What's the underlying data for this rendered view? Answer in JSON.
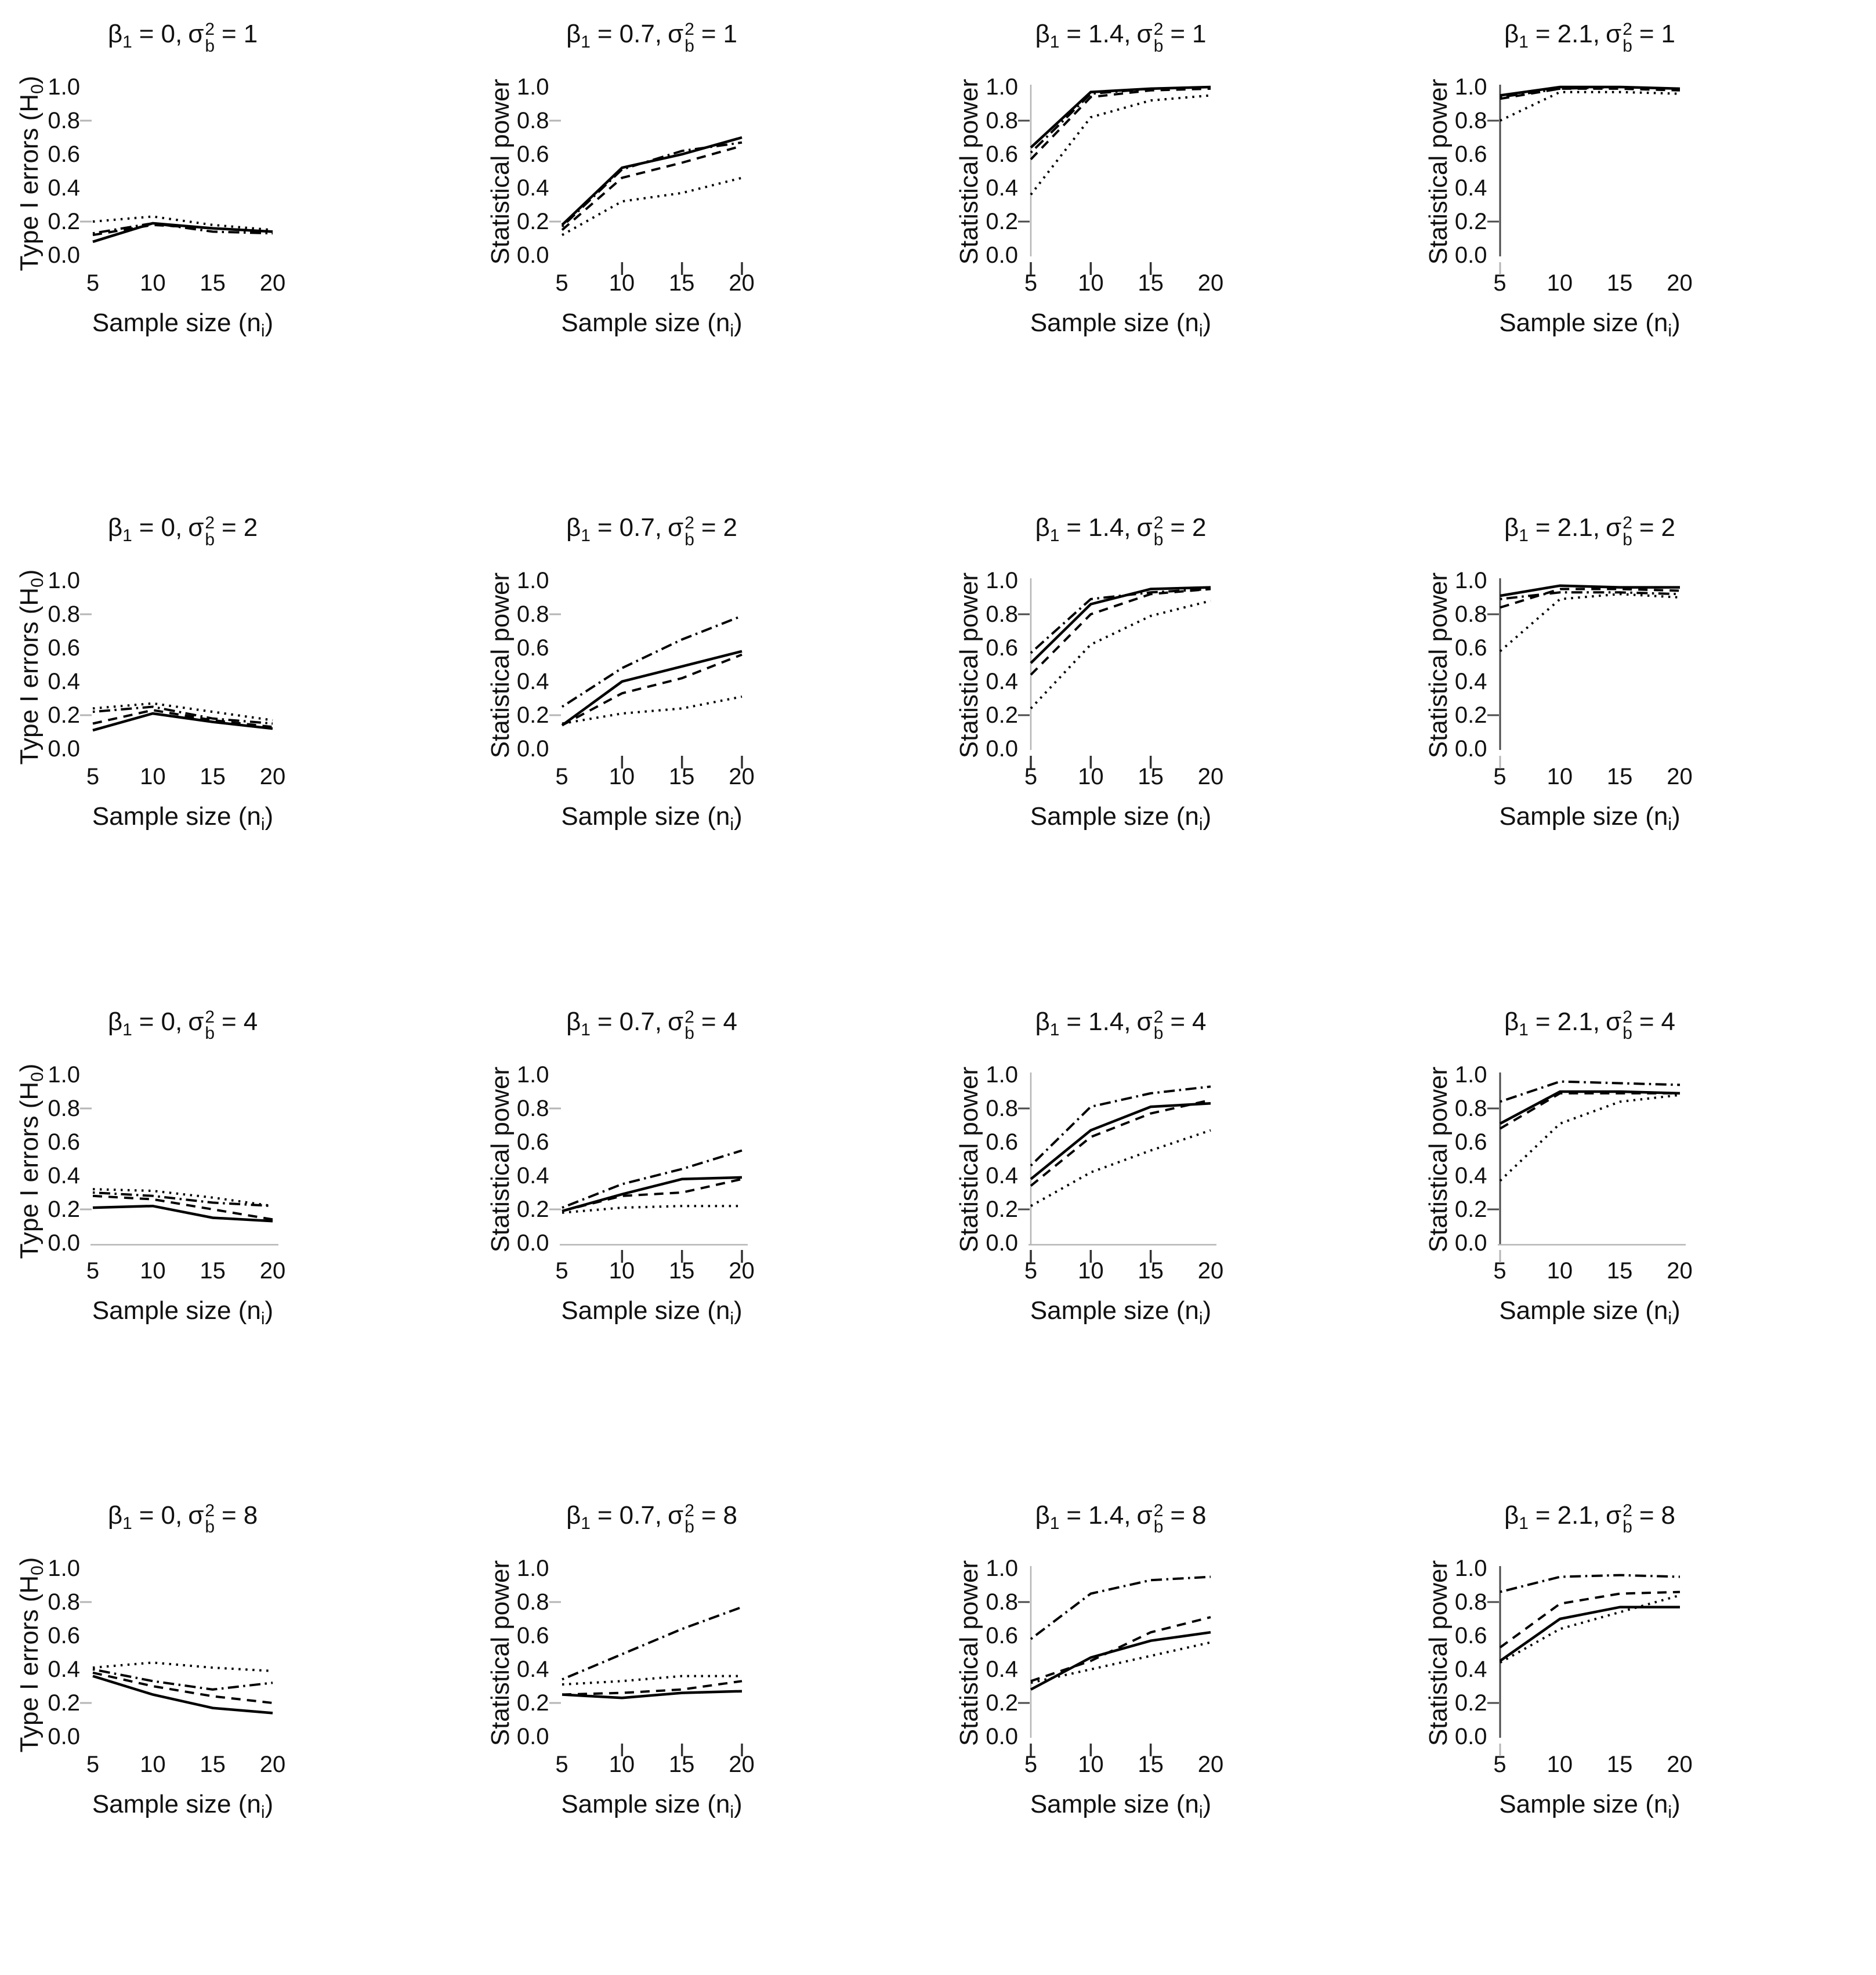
{
  "figure": {
    "background": "#ffffff",
    "text_color": "#111111",
    "line_color": "#000000",
    "axis_light_color": "#b5b5b5",
    "axis_dark_color": "#4a4a4a",
    "rows": 4,
    "columns": 4
  },
  "labels": {
    "beta_symbol": "β",
    "beta_sub": "1",
    "sigma_symbol": "σ",
    "sigma_sup": "2",
    "sigma_sub": "b",
    "eq": "=",
    "sep": ",",
    "y_type1": {
      "pre": "Type I errors (H",
      "sub": "0",
      "post": ")"
    },
    "y_power": "Statistical power",
    "x": {
      "pre": "Sample size (n",
      "sub": "i",
      "post": ")"
    }
  },
  "axis": {
    "x_ticks": [
      "5",
      "10",
      "15",
      "20"
    ],
    "y_ticks": [
      "0.0",
      "0.2",
      "0.4",
      "0.6",
      "0.8",
      "1.0"
    ],
    "xlim": [
      5,
      20
    ],
    "ylim": [
      0,
      1
    ],
    "grid": "off",
    "legend": "none"
  },
  "series_styles": [
    {
      "name": "solid"
    },
    {
      "name": "dashed"
    },
    {
      "name": "dotted"
    },
    {
      "name": "dash-dot"
    }
  ],
  "chart_data": [
    {
      "type": "line",
      "title_plain": "β1 = 0, σb² = 1",
      "beta1": "0",
      "sigma_b2": "1",
      "ylabel_kind": "type1",
      "x": [
        5,
        10,
        15,
        20
      ],
      "ylim": [
        0,
        1
      ],
      "series": [
        {
          "name": "solid",
          "values": [
            0.08,
            0.19,
            0.16,
            0.14
          ]
        },
        {
          "name": "dashed",
          "values": [
            0.12,
            0.18,
            0.16,
            0.14
          ]
        },
        {
          "name": "dotted",
          "values": [
            0.2,
            0.23,
            0.18,
            0.15
          ]
        },
        {
          "name": "dash-dot",
          "values": [
            0.13,
            0.19,
            0.14,
            0.13
          ]
        }
      ],
      "axes": {
        "y_line": "none",
        "x_line": false,
        "x_ticks_dark": [],
        "x_ticks_light": []
      }
    },
    {
      "type": "line",
      "title_plain": "β1 = 0.7, σb² = 1",
      "beta1": "0.7",
      "sigma_b2": "1",
      "ylabel_kind": "power",
      "x": [
        5,
        10,
        15,
        20
      ],
      "ylim": [
        0,
        1
      ],
      "series": [
        {
          "name": "solid",
          "values": [
            0.18,
            0.52,
            0.6,
            0.7
          ]
        },
        {
          "name": "dashed",
          "values": [
            0.15,
            0.46,
            0.55,
            0.65
          ]
        },
        {
          "name": "dotted",
          "values": [
            0.12,
            0.32,
            0.37,
            0.46
          ]
        },
        {
          "name": "dash-dot",
          "values": [
            0.17,
            0.51,
            0.62,
            0.67
          ]
        }
      ],
      "axes": {
        "y_line": "none",
        "x_line": false,
        "x_ticks_dark": [
          10,
          15,
          20
        ],
        "x_ticks_light": []
      }
    },
    {
      "type": "line",
      "title_plain": "β1 = 1.4, σb² = 1",
      "beta1": "1.4",
      "sigma_b2": "1",
      "ylabel_kind": "power",
      "x": [
        5,
        10,
        15,
        20
      ],
      "ylim": [
        0,
        1
      ],
      "series": [
        {
          "name": "solid",
          "values": [
            0.64,
            0.97,
            0.99,
            1.0
          ]
        },
        {
          "name": "dashed",
          "values": [
            0.57,
            0.94,
            0.98,
            0.99
          ]
        },
        {
          "name": "dotted",
          "values": [
            0.36,
            0.82,
            0.92,
            0.95
          ]
        },
        {
          "name": "dash-dot",
          "values": [
            0.61,
            0.96,
            0.99,
            1.0
          ]
        }
      ],
      "axes": {
        "y_line": "light",
        "x_line": false,
        "x_ticks_dark": [
          5,
          10,
          15
        ],
        "x_ticks_light": []
      }
    },
    {
      "type": "line",
      "title_plain": "β1 = 2.1, σb² = 1",
      "beta1": "2.1",
      "sigma_b2": "1",
      "ylabel_kind": "power",
      "x": [
        5,
        10,
        15,
        20
      ],
      "ylim": [
        0,
        1
      ],
      "series": [
        {
          "name": "solid",
          "values": [
            0.95,
            1.0,
            1.0,
            0.99
          ]
        },
        {
          "name": "dashed",
          "values": [
            0.93,
            0.99,
            0.99,
            0.98
          ]
        },
        {
          "name": "dotted",
          "values": [
            0.8,
            0.97,
            0.97,
            0.96
          ]
        },
        {
          "name": "dash-dot",
          "values": [
            0.94,
            0.99,
            1.0,
            0.99
          ]
        }
      ],
      "axes": {
        "y_line": "dark",
        "x_line": false,
        "x_ticks_dark": [],
        "x_ticks_light": [
          5
        ]
      }
    },
    {
      "type": "line",
      "title_plain": "β1 = 0, σb² = 2",
      "beta1": "0",
      "sigma_b2": "2",
      "ylabel_kind": "type1",
      "x": [
        5,
        10,
        15,
        20
      ],
      "ylim": [
        0,
        1
      ],
      "series": [
        {
          "name": "solid",
          "values": [
            0.11,
            0.21,
            0.16,
            0.12
          ]
        },
        {
          "name": "dashed",
          "values": [
            0.15,
            0.23,
            0.17,
            0.13
          ]
        },
        {
          "name": "dotted",
          "values": [
            0.24,
            0.27,
            0.22,
            0.17
          ]
        },
        {
          "name": "dash-dot",
          "values": [
            0.22,
            0.25,
            0.18,
            0.15
          ]
        }
      ],
      "axes": {
        "y_line": "none",
        "x_line": false,
        "x_ticks_dark": [],
        "x_ticks_light": []
      }
    },
    {
      "type": "line",
      "title_plain": "β1 = 0.7, σb² = 2",
      "beta1": "0.7",
      "sigma_b2": "2",
      "ylabel_kind": "power",
      "x": [
        5,
        10,
        15,
        20
      ],
      "ylim": [
        0,
        1
      ],
      "series": [
        {
          "name": "solid",
          "values": [
            0.14,
            0.4,
            0.49,
            0.58
          ]
        },
        {
          "name": "dashed",
          "values": [
            0.14,
            0.33,
            0.42,
            0.56
          ]
        },
        {
          "name": "dotted",
          "values": [
            0.15,
            0.21,
            0.24,
            0.31
          ]
        },
        {
          "name": "dash-dot",
          "values": [
            0.25,
            0.48,
            0.65,
            0.79
          ]
        }
      ],
      "axes": {
        "y_line": "none",
        "x_line": false,
        "x_ticks_dark": [
          10,
          15,
          20
        ],
        "x_ticks_light": []
      }
    },
    {
      "type": "line",
      "title_plain": "β1 = 1.4, σb² = 2",
      "beta1": "1.4",
      "sigma_b2": "2",
      "ylabel_kind": "power",
      "x": [
        5,
        10,
        15,
        20
      ],
      "ylim": [
        0,
        1
      ],
      "series": [
        {
          "name": "solid",
          "values": [
            0.51,
            0.86,
            0.95,
            0.96
          ]
        },
        {
          "name": "dashed",
          "values": [
            0.44,
            0.8,
            0.92,
            0.95
          ]
        },
        {
          "name": "dotted",
          "values": [
            0.24,
            0.62,
            0.79,
            0.88
          ]
        },
        {
          "name": "dash-dot",
          "values": [
            0.57,
            0.89,
            0.93,
            0.95
          ]
        }
      ],
      "axes": {
        "y_line": "light",
        "x_line": false,
        "x_ticks_dark": [
          5,
          10,
          15
        ],
        "x_ticks_light": []
      }
    },
    {
      "type": "line",
      "title_plain": "β1 = 2.1, σb² = 2",
      "beta1": "2.1",
      "sigma_b2": "2",
      "ylabel_kind": "power",
      "x": [
        5,
        10,
        15,
        20
      ],
      "ylim": [
        0,
        1
      ],
      "series": [
        {
          "name": "solid",
          "values": [
            0.91,
            0.97,
            0.96,
            0.96
          ]
        },
        {
          "name": "dashed",
          "values": [
            0.84,
            0.95,
            0.95,
            0.94
          ]
        },
        {
          "name": "dotted",
          "values": [
            0.58,
            0.89,
            0.92,
            0.9
          ]
        },
        {
          "name": "dash-dot",
          "values": [
            0.89,
            0.93,
            0.93,
            0.92
          ]
        }
      ],
      "axes": {
        "y_line": "dark",
        "x_line": false,
        "x_ticks_dark": [],
        "x_ticks_light": [
          5
        ]
      }
    },
    {
      "type": "line",
      "title_plain": "β1 = 0, σb² = 4",
      "beta1": "0",
      "sigma_b2": "4",
      "ylabel_kind": "type1",
      "x": [
        5,
        10,
        15,
        20
      ],
      "ylim": [
        0,
        1
      ],
      "series": [
        {
          "name": "solid",
          "values": [
            0.21,
            0.22,
            0.15,
            0.13
          ]
        },
        {
          "name": "dashed",
          "values": [
            0.28,
            0.26,
            0.2,
            0.14
          ]
        },
        {
          "name": "dotted",
          "values": [
            0.32,
            0.31,
            0.27,
            0.22
          ]
        },
        {
          "name": "dash-dot",
          "values": [
            0.3,
            0.28,
            0.24,
            0.22
          ]
        }
      ],
      "axes": {
        "y_line": "none",
        "x_line": true,
        "x_ticks_dark": [],
        "x_ticks_light": []
      }
    },
    {
      "type": "line",
      "title_plain": "β1 = 0.7, σb² = 4",
      "beta1": "0.7",
      "sigma_b2": "4",
      "ylabel_kind": "power",
      "x": [
        5,
        10,
        15,
        20
      ],
      "ylim": [
        0,
        1
      ],
      "series": [
        {
          "name": "solid",
          "values": [
            0.19,
            0.29,
            0.38,
            0.39
          ]
        },
        {
          "name": "dashed",
          "values": [
            0.19,
            0.28,
            0.3,
            0.38
          ]
        },
        {
          "name": "dotted",
          "values": [
            0.18,
            0.21,
            0.22,
            0.22
          ]
        },
        {
          "name": "dash-dot",
          "values": [
            0.21,
            0.35,
            0.44,
            0.55
          ]
        }
      ],
      "axes": {
        "y_line": "none",
        "x_line": true,
        "x_ticks_dark": [
          10,
          15,
          20
        ],
        "x_ticks_light": []
      }
    },
    {
      "type": "line",
      "title_plain": "β1 = 1.4, σb² = 4",
      "beta1": "1.4",
      "sigma_b2": "4",
      "ylabel_kind": "power",
      "x": [
        5,
        10,
        15,
        20
      ],
      "ylim": [
        0,
        1
      ],
      "series": [
        {
          "name": "solid",
          "values": [
            0.38,
            0.67,
            0.81,
            0.83
          ]
        },
        {
          "name": "dashed",
          "values": [
            0.34,
            0.63,
            0.77,
            0.85
          ]
        },
        {
          "name": "dotted",
          "values": [
            0.22,
            0.42,
            0.55,
            0.67
          ]
        },
        {
          "name": "dash-dot",
          "values": [
            0.46,
            0.81,
            0.89,
            0.93
          ]
        }
      ],
      "axes": {
        "y_line": "light",
        "x_line": true,
        "x_ticks_dark": [
          5,
          10,
          15
        ],
        "x_ticks_light": []
      }
    },
    {
      "type": "line",
      "title_plain": "β1 = 2.1, σb² = 4",
      "beta1": "2.1",
      "sigma_b2": "4",
      "ylabel_kind": "power",
      "x": [
        5,
        10,
        15,
        20
      ],
      "ylim": [
        0,
        1
      ],
      "series": [
        {
          "name": "solid",
          "values": [
            0.71,
            0.9,
            0.9,
            0.89
          ]
        },
        {
          "name": "dashed",
          "values": [
            0.68,
            0.89,
            0.89,
            0.89
          ]
        },
        {
          "name": "dotted",
          "values": [
            0.37,
            0.71,
            0.84,
            0.88
          ]
        },
        {
          "name": "dash-dot",
          "values": [
            0.84,
            0.96,
            0.95,
            0.94
          ]
        }
      ],
      "axes": {
        "y_line": "dark",
        "x_line": true,
        "x_ticks_dark": [],
        "x_ticks_light": [
          5
        ]
      }
    },
    {
      "type": "line",
      "title_plain": "β1 = 0, σb² = 8",
      "beta1": "0",
      "sigma_b2": "8",
      "ylabel_kind": "type1",
      "x": [
        5,
        10,
        15,
        20
      ],
      "ylim": [
        0,
        1
      ],
      "series": [
        {
          "name": "solid",
          "values": [
            0.36,
            0.25,
            0.17,
            0.14
          ]
        },
        {
          "name": "dashed",
          "values": [
            0.38,
            0.3,
            0.24,
            0.2
          ]
        },
        {
          "name": "dotted",
          "values": [
            0.41,
            0.44,
            0.41,
            0.39
          ]
        },
        {
          "name": "dash-dot",
          "values": [
            0.4,
            0.33,
            0.28,
            0.32
          ]
        }
      ],
      "axes": {
        "y_line": "none",
        "x_line": false,
        "x_ticks_dark": [],
        "x_ticks_light": []
      }
    },
    {
      "type": "line",
      "title_plain": "β1 = 0.7, σb² = 8",
      "beta1": "0.7",
      "sigma_b2": "8",
      "ylabel_kind": "power",
      "x": [
        5,
        10,
        15,
        20
      ],
      "ylim": [
        0,
        1
      ],
      "series": [
        {
          "name": "solid",
          "values": [
            0.25,
            0.23,
            0.26,
            0.27
          ]
        },
        {
          "name": "dashed",
          "values": [
            0.25,
            0.26,
            0.28,
            0.33
          ]
        },
        {
          "name": "dotted",
          "values": [
            0.31,
            0.33,
            0.36,
            0.36
          ]
        },
        {
          "name": "dash-dot",
          "values": [
            0.34,
            0.49,
            0.64,
            0.77
          ]
        }
      ],
      "axes": {
        "y_line": "none",
        "x_line": false,
        "x_ticks_dark": [
          10,
          15,
          20
        ],
        "x_ticks_light": []
      }
    },
    {
      "type": "line",
      "title_plain": "β1 = 1.4, σb² = 8",
      "beta1": "1.4",
      "sigma_b2": "8",
      "ylabel_kind": "power",
      "x": [
        5,
        10,
        15,
        20
      ],
      "ylim": [
        0,
        1
      ],
      "series": [
        {
          "name": "solid",
          "values": [
            0.28,
            0.47,
            0.57,
            0.62
          ]
        },
        {
          "name": "dashed",
          "values": [
            0.33,
            0.45,
            0.62,
            0.71
          ]
        },
        {
          "name": "dotted",
          "values": [
            0.32,
            0.4,
            0.48,
            0.56
          ]
        },
        {
          "name": "dash-dot",
          "values": [
            0.58,
            0.85,
            0.93,
            0.95
          ]
        }
      ],
      "axes": {
        "y_line": "light",
        "x_line": false,
        "x_ticks_dark": [
          5,
          10,
          15
        ],
        "x_ticks_light": []
      }
    },
    {
      "type": "line",
      "title_plain": "β1 = 2.1, σb² = 8",
      "beta1": "2.1",
      "sigma_b2": "8",
      "ylabel_kind": "power",
      "x": [
        5,
        10,
        15,
        20
      ],
      "ylim": [
        0,
        1
      ],
      "series": [
        {
          "name": "solid",
          "values": [
            0.45,
            0.7,
            0.77,
            0.77
          ]
        },
        {
          "name": "dashed",
          "values": [
            0.53,
            0.79,
            0.85,
            0.86
          ]
        },
        {
          "name": "dotted",
          "values": [
            0.44,
            0.64,
            0.74,
            0.84
          ]
        },
        {
          "name": "dash-dot",
          "values": [
            0.86,
            0.95,
            0.96,
            0.95
          ]
        }
      ],
      "axes": {
        "y_line": "dark",
        "x_line": false,
        "x_ticks_dark": [],
        "x_ticks_light": [
          5
        ]
      }
    }
  ]
}
